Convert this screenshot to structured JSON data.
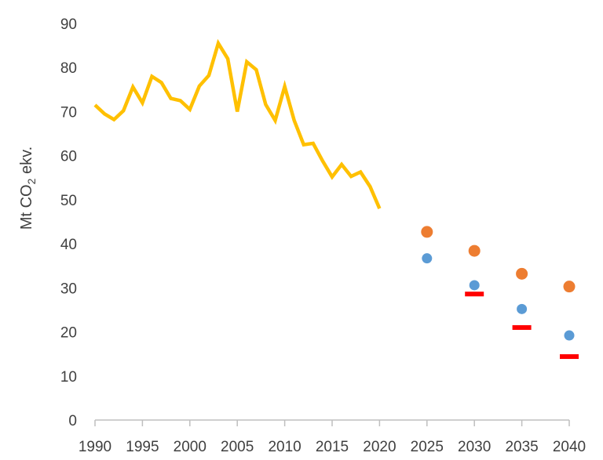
{
  "chart_data": {
    "type": "line",
    "ylabel": "Mt CO",
    "ylabel_subscript": "2",
    "ylabel_suffix": " ekv.",
    "ylim": [
      0,
      90
    ],
    "yticks": [
      0,
      10,
      20,
      30,
      40,
      50,
      60,
      70,
      80,
      90
    ],
    "xlim": [
      1990,
      2040
    ],
    "xticks": [
      1990,
      1995,
      2000,
      2005,
      2010,
      2015,
      2020,
      2025,
      2030,
      2035,
      2040
    ],
    "grid": false,
    "legend": "none",
    "series": [
      {
        "kind": "line",
        "color": "#FFC000",
        "points": [
          [
            1990,
            71.5
          ],
          [
            1991,
            69.5
          ],
          [
            1992,
            68.2
          ],
          [
            1993,
            70.2
          ],
          [
            1994,
            75.6
          ],
          [
            1995,
            72.0
          ],
          [
            1996,
            78.0
          ],
          [
            1997,
            76.6
          ],
          [
            1998,
            73.0
          ],
          [
            1999,
            72.5
          ],
          [
            2000,
            70.5
          ],
          [
            2001,
            75.8
          ],
          [
            2002,
            78.2
          ],
          [
            2003,
            85.5
          ],
          [
            2004,
            82.0
          ],
          [
            2005,
            70.0
          ],
          [
            2006,
            81.3
          ],
          [
            2007,
            79.5
          ],
          [
            2008,
            71.6
          ],
          [
            2009,
            68.0
          ],
          [
            2010,
            75.7
          ],
          [
            2011,
            68.0
          ],
          [
            2012,
            62.5
          ],
          [
            2013,
            62.8
          ],
          [
            2014,
            58.8
          ],
          [
            2015,
            55.2
          ],
          [
            2016,
            58.0
          ],
          [
            2017,
            55.3
          ],
          [
            2018,
            56.3
          ],
          [
            2019,
            53.0
          ],
          [
            2020,
            48.0
          ]
        ]
      },
      {
        "kind": "scatter",
        "color": "#ED7D31",
        "points": [
          [
            2025,
            42.7
          ],
          [
            2030,
            38.4
          ],
          [
            2035,
            33.2
          ],
          [
            2040,
            30.3
          ]
        ]
      },
      {
        "kind": "scatter",
        "color": "#5B9BD5",
        "points": [
          [
            2025,
            36.7
          ],
          [
            2030,
            30.6
          ],
          [
            2035,
            25.2
          ],
          [
            2040,
            19.2
          ]
        ]
      },
      {
        "kind": "dash",
        "color": "#FF0000",
        "points": [
          [
            2030,
            28.6
          ],
          [
            2035,
            21.0
          ],
          [
            2040,
            14.4
          ]
        ]
      }
    ]
  }
}
